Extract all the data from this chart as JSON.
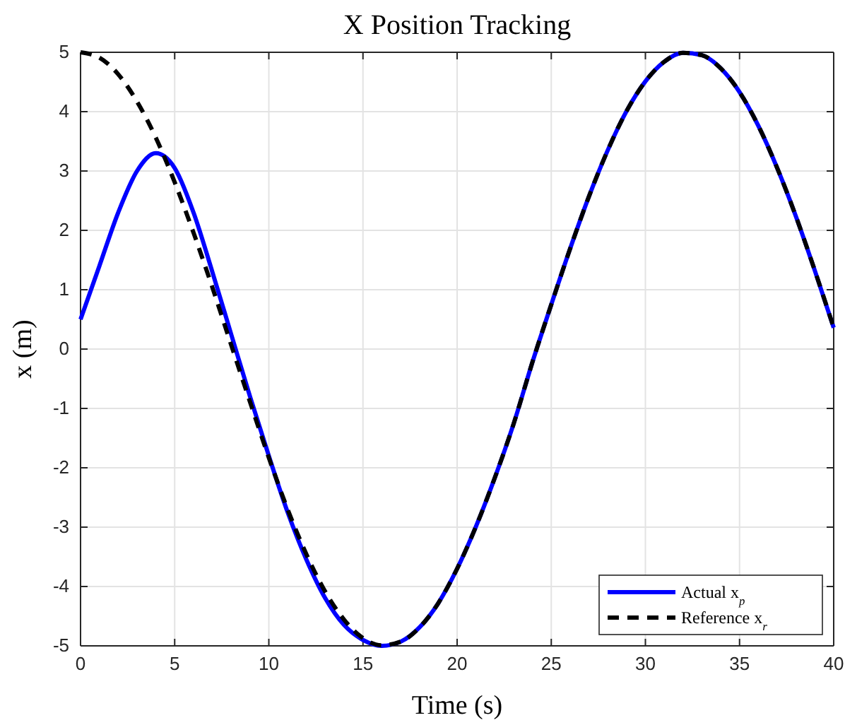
{
  "chart_data": {
    "type": "line",
    "title": "X Position Tracking",
    "xlabel": "Time (s)",
    "ylabel": "x (m)",
    "x": [
      0,
      1,
      2,
      3,
      4,
      5,
      6,
      7,
      8,
      9,
      10,
      11,
      12,
      13,
      14,
      15,
      16,
      17,
      18,
      19,
      20,
      21,
      22,
      23,
      24,
      25,
      26,
      27,
      28,
      29,
      30,
      31,
      32,
      33,
      34,
      35,
      36,
      37,
      38,
      39,
      40
    ],
    "xlim": [
      0,
      40
    ],
    "xticks": [
      0,
      5,
      10,
      15,
      20,
      25,
      30,
      35,
      40
    ],
    "ylim": [
      -5,
      5
    ],
    "yticks": [
      -5,
      -4,
      -3,
      -2,
      -1,
      0,
      1,
      2,
      3,
      4,
      5
    ],
    "grid": true,
    "legend": "bottom right",
    "series": [
      {
        "name": "Actual x$_{p}$",
        "color": "#0000ff",
        "line_style": "solid",
        "values": [
          0.5,
          1.4,
          2.3,
          3.0,
          3.3,
          3.05,
          2.3,
          1.3,
          0.25,
          -0.8,
          -1.8,
          -2.75,
          -3.55,
          -4.2,
          -4.65,
          -4.9,
          -5.0,
          -4.93,
          -4.69,
          -4.28,
          -3.7,
          -2.99,
          -2.17,
          -1.26,
          -0.22,
          0.75,
          1.69,
          2.57,
          3.35,
          4.01,
          4.51,
          4.84,
          4.99,
          4.95,
          4.73,
          4.33,
          3.76,
          3.05,
          2.23,
          1.32,
          0.36
        ]
      },
      {
        "name": "Reference x$_{r}$",
        "color": "#000000",
        "line_style": "dashed",
        "values": [
          5,
          4.91,
          4.63,
          4.17,
          3.56,
          2.81,
          1.96,
          1.04,
          0.07,
          -0.89,
          -1.83,
          -2.7,
          -3.46,
          -4.09,
          -4.56,
          -4.87,
          -4.99,
          -4.93,
          -4.69,
          -4.28,
          -3.7,
          -2.99,
          -2.17,
          -1.26,
          -0.22,
          0.75,
          1.69,
          2.57,
          3.35,
          4.01,
          4.51,
          4.84,
          4.99,
          4.95,
          4.73,
          4.33,
          3.76,
          3.05,
          2.23,
          1.32,
          0.36
        ]
      }
    ]
  }
}
